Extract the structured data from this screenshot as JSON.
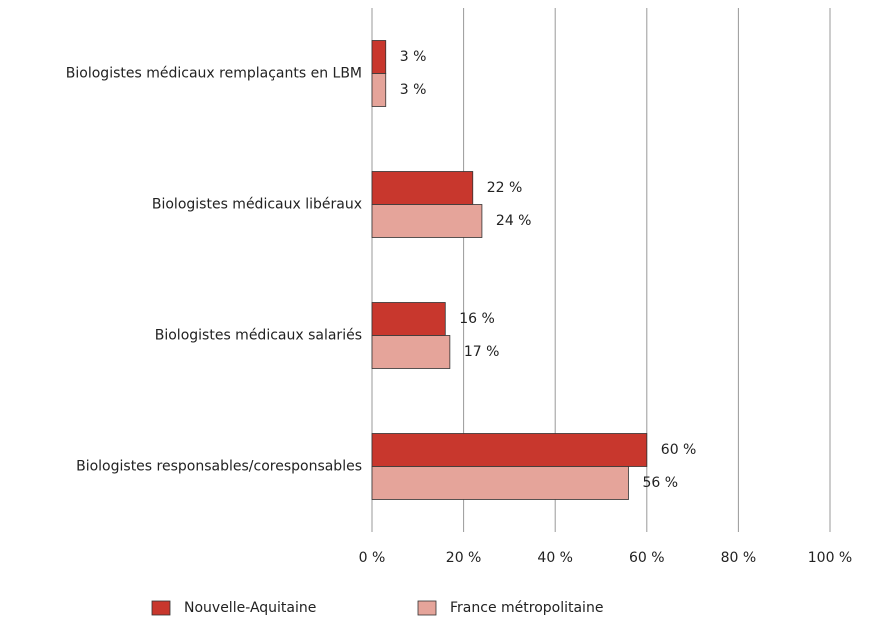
{
  "chart_data": {
    "type": "hbar",
    "categories": [
      "Biologistes médicaux remplaçants en LBM",
      "Biologistes médicaux libéraux",
      "Biologistes médicaux salariés",
      "Biologistes responsables/coresponsables"
    ],
    "series": [
      {
        "name": "Nouvelle-Aquitaine",
        "color": "#c8372d",
        "values": [
          3,
          22,
          16,
          60
        ],
        "value_labels": [
          "3 %",
          "22 %",
          "16 %",
          "60 %"
        ]
      },
      {
        "name": "France métropolitaine",
        "color": "#e5a49a",
        "values": [
          3,
          24,
          17,
          56
        ],
        "value_labels": [
          "3 %",
          "24 %",
          "17 %",
          "56 %"
        ]
      }
    ],
    "xlim": [
      0,
      100
    ],
    "xticks": [
      {
        "value": 0,
        "label": "0 %"
      },
      {
        "value": 20,
        "label": "20 %"
      },
      {
        "value": 40,
        "label": "40 %"
      },
      {
        "value": 60,
        "label": "60 %"
      },
      {
        "value": 80,
        "label": "80 %"
      },
      {
        "value": 100,
        "label": "100 %"
      }
    ],
    "grid": true,
    "legend": "bottom"
  }
}
